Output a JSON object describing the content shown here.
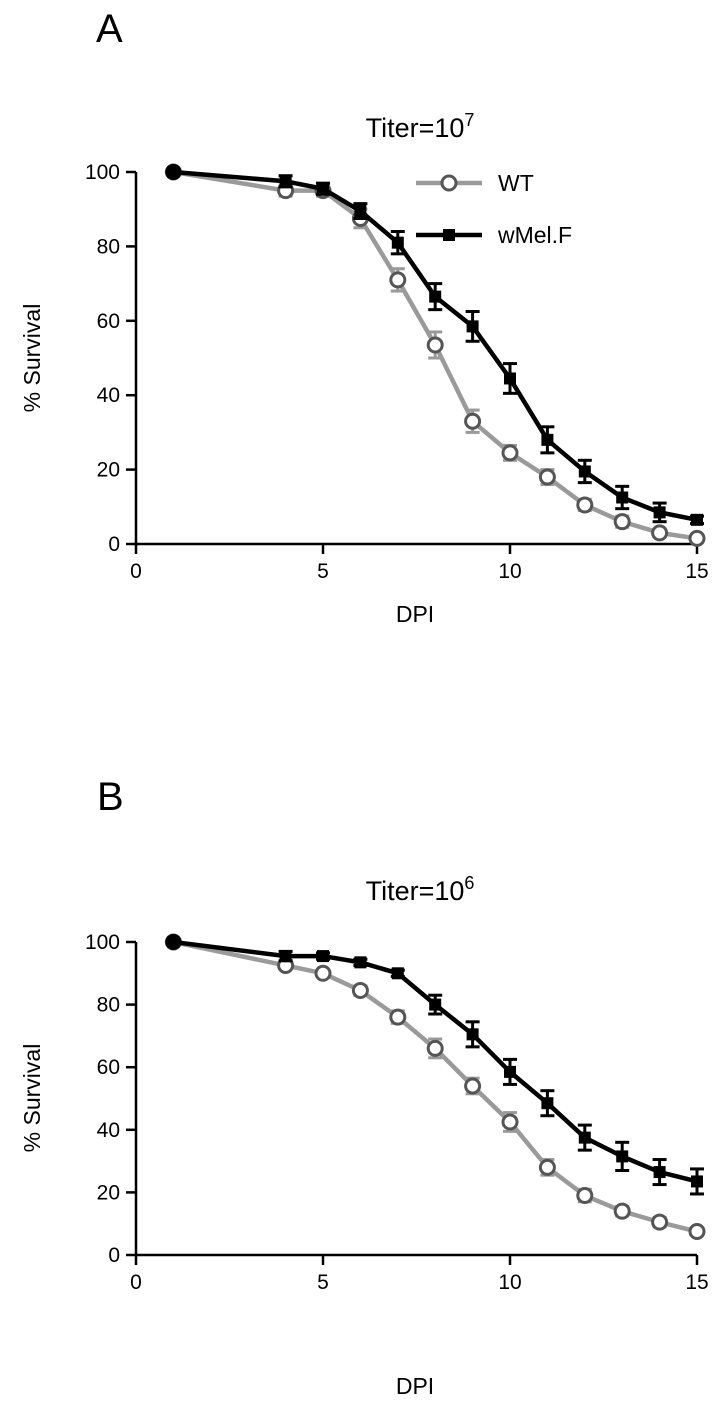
{
  "chart_data": [
    {
      "type": "line",
      "panel_label": "A",
      "title_text": "Titer=10",
      "title_exponent": "7",
      "xlabel": "DPI",
      "ylabel": "% Survival",
      "xlim": [
        0,
        15
      ],
      "ylim": [
        0,
        100
      ],
      "xticks": [
        "0",
        "5",
        "10",
        "15"
      ],
      "yticks": [
        "0",
        "20",
        "40",
        "60",
        "80",
        "100"
      ],
      "grid": false,
      "legend": {
        "position": "top-right",
        "entries": [
          {
            "label": "WT",
            "color": "#9a9a9a",
            "marker": "circle-open"
          },
          {
            "label": "wMel.F",
            "color": "#000000",
            "marker": "square-filled"
          }
        ]
      },
      "series": [
        {
          "name": "WT",
          "color": "#9a9a9a",
          "x": [
            1,
            4,
            5,
            6,
            7,
            8,
            9,
            10,
            11,
            12,
            13,
            14,
            15
          ],
          "y": [
            100,
            95,
            95,
            87.5,
            71,
            53.5,
            33,
            24.5,
            18,
            10.5,
            6,
            3,
            1.5
          ],
          "err": [
            0,
            1.5,
            1.5,
            2.5,
            3,
            3.5,
            3,
            2,
            2,
            1.5,
            1.5,
            1,
            1
          ]
        },
        {
          "name": "wMel.F",
          "color": "#000000",
          "x": [
            1,
            4,
            5,
            6,
            7,
            8,
            9,
            10,
            11,
            12,
            13,
            14,
            15
          ],
          "y": [
            100,
            97.5,
            95.5,
            89.5,
            81,
            66.5,
            58.5,
            44.5,
            28,
            19.5,
            12.5,
            8.5,
            6.5
          ],
          "err": [
            0,
            1.5,
            1.5,
            2,
            3,
            3.5,
            4,
            4,
            3.5,
            3,
            3,
            2.5,
            1
          ]
        }
      ]
    },
    {
      "type": "line",
      "panel_label": "B",
      "title_text": "Titer=10",
      "title_exponent": "6",
      "xlabel": "DPI",
      "ylabel": "% Survival",
      "xlim": [
        0,
        15
      ],
      "ylim": [
        0,
        100
      ],
      "xticks": [
        "0",
        "5",
        "10",
        "15"
      ],
      "yticks": [
        "0",
        "20",
        "40",
        "60",
        "80",
        "100"
      ],
      "grid": false,
      "series": [
        {
          "name": "WT",
          "color": "#9a9a9a",
          "x": [
            1,
            4,
            5,
            6,
            7,
            8,
            9,
            10,
            11,
            12,
            13,
            14,
            15
          ],
          "y": [
            100,
            92.5,
            90,
            84.5,
            76,
            66,
            54,
            42.5,
            28,
            19,
            14,
            10.5,
            7.5
          ],
          "err": [
            0,
            1,
            1,
            1.5,
            2,
            3,
            2.5,
            3,
            2.5,
            2,
            1.5,
            1.5,
            1
          ]
        },
        {
          "name": "wMel.F",
          "color": "#000000",
          "x": [
            1,
            4,
            5,
            6,
            7,
            8,
            9,
            10,
            11,
            12,
            13,
            14,
            15
          ],
          "y": [
            100,
            95.5,
            95.5,
            93.5,
            90,
            80,
            70.5,
            58.5,
            48.5,
            37.5,
            31.5,
            26.5,
            23.5
          ],
          "err": [
            0,
            1.5,
            1,
            1,
            1,
            3,
            4,
            4,
            4,
            4,
            4.5,
            4,
            4
          ]
        }
      ]
    }
  ]
}
